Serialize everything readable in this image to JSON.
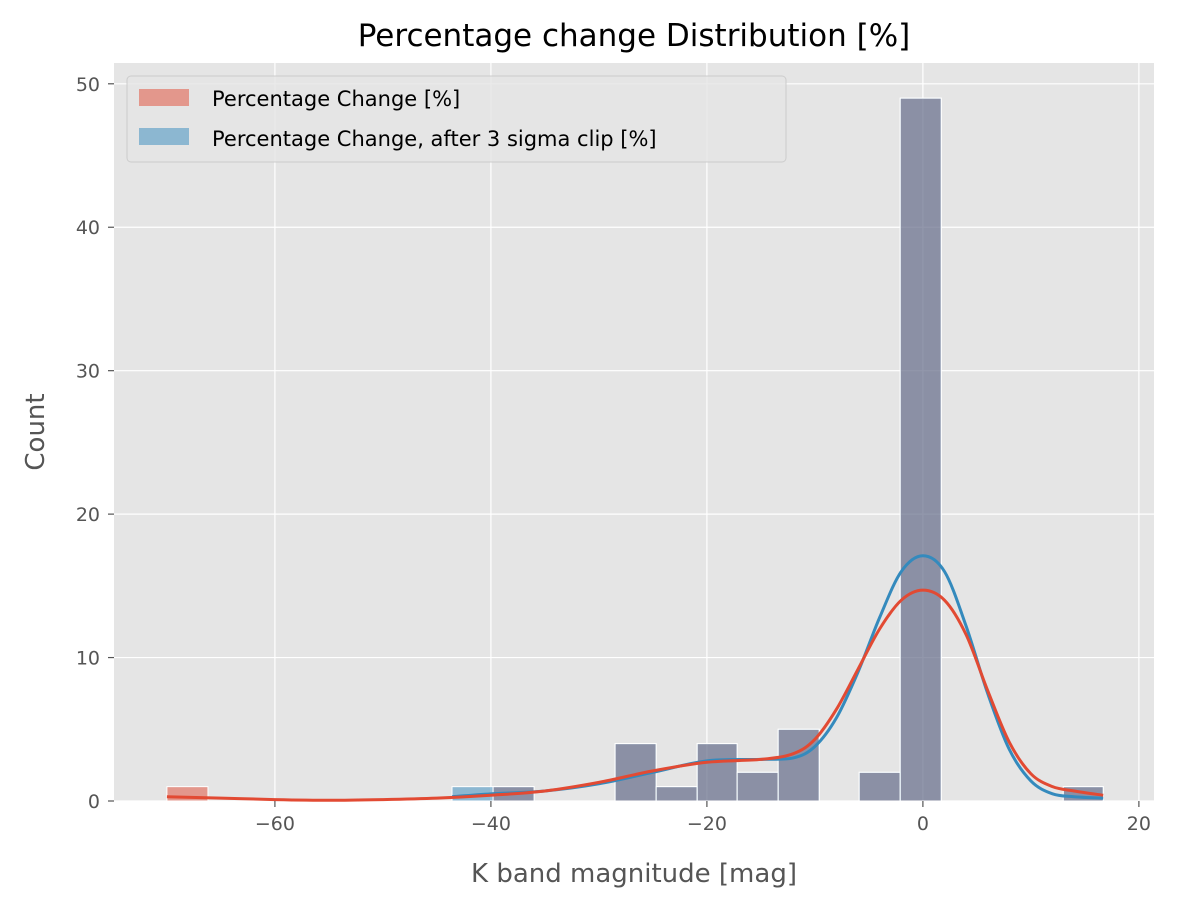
{
  "chart_data": {
    "type": "bar",
    "title": "Percentage change Distribution [%]",
    "xlabel": "K band magnitude [mag]",
    "ylabel": "Count",
    "xlim": [
      -74.9,
      21.4
    ],
    "ylim": [
      0,
      51.45
    ],
    "xticks": [
      -60,
      -40,
      -20,
      0,
      20
    ],
    "xtick_labels": [
      "−60",
      "−40",
      "−20",
      "0",
      "20"
    ],
    "yticks": [
      0,
      10,
      20,
      30,
      40,
      50
    ],
    "ytick_labels": [
      "0",
      "10",
      "20",
      "30",
      "40",
      "50"
    ],
    "grid": true,
    "legend_position": "top-left",
    "series": [
      {
        "name": "Percentage Change [%]",
        "color": "#E24A33",
        "bins": [
          {
            "x0": -70.0,
            "x1": -66.2,
            "count": 1
          },
          {
            "x0": -66.2,
            "x1": -62.4,
            "count": 0
          },
          {
            "x0": -62.4,
            "x1": -58.6,
            "count": 0
          },
          {
            "x0": -58.6,
            "x1": -54.9,
            "count": 0
          },
          {
            "x0": -54.9,
            "x1": -51.1,
            "count": 0
          },
          {
            "x0": -51.1,
            "x1": -47.3,
            "count": 0
          },
          {
            "x0": -47.3,
            "x1": -43.6,
            "count": 0
          },
          {
            "x0": -43.6,
            "x1": -39.8,
            "count": 0
          },
          {
            "x0": -39.8,
            "x1": -36.0,
            "count": 1
          },
          {
            "x0": -36.0,
            "x1": -32.3,
            "count": 0
          },
          {
            "x0": -32.3,
            "x1": -28.5,
            "count": 0
          },
          {
            "x0": -28.5,
            "x1": -24.7,
            "count": 4
          },
          {
            "x0": -24.7,
            "x1": -20.9,
            "count": 1
          },
          {
            "x0": -20.9,
            "x1": -17.2,
            "count": 4
          },
          {
            "x0": -17.2,
            "x1": -13.4,
            "count": 2
          },
          {
            "x0": -13.4,
            "x1": -9.6,
            "count": 5
          },
          {
            "x0": -9.6,
            "x1": -5.9,
            "count": 0
          },
          {
            "x0": -5.9,
            "x1": -2.1,
            "count": 2
          },
          {
            "x0": -2.1,
            "x1": 1.7,
            "count": 49
          },
          {
            "x0": 1.7,
            "x1": 5.4,
            "count": 0
          },
          {
            "x0": 5.4,
            "x1": 9.2,
            "count": 0
          },
          {
            "x0": 9.2,
            "x1": 13.0,
            "count": 0
          },
          {
            "x0": 13.0,
            "x1": 16.7,
            "count": 1
          }
        ],
        "kde": {
          "x": [
            -70,
            -65,
            -60,
            -55,
            -50,
            -45,
            -40,
            -35,
            -30,
            -25,
            -20,
            -15,
            -12,
            -10,
            -8,
            -6,
            -4,
            -2,
            0,
            2,
            4,
            6,
            8,
            10,
            12,
            14,
            16.7
          ],
          "y": [
            0.3,
            0.2,
            0.1,
            0.05,
            0.1,
            0.2,
            0.4,
            0.7,
            1.3,
            2.1,
            2.7,
            2.9,
            3.3,
            4.3,
            6.4,
            9.2,
            12.0,
            14.0,
            14.7,
            14.0,
            11.6,
            7.7,
            4.1,
            1.9,
            1.0,
            0.7,
            0.4
          ]
        }
      },
      {
        "name": "Percentage Change, after 3 sigma clip [%]",
        "color": "#348ABD",
        "bins": [
          {
            "x0": -43.6,
            "x1": -39.8,
            "count": 1
          },
          {
            "x0": -39.8,
            "x1": -36.0,
            "count": 1
          },
          {
            "x0": -28.5,
            "x1": -24.7,
            "count": 4
          },
          {
            "x0": -24.7,
            "x1": -20.9,
            "count": 1
          },
          {
            "x0": -20.9,
            "x1": -17.2,
            "count": 4
          },
          {
            "x0": -17.2,
            "x1": -13.4,
            "count": 2
          },
          {
            "x0": -13.4,
            "x1": -9.6,
            "count": 5
          },
          {
            "x0": -5.9,
            "x1": -2.1,
            "count": 2
          },
          {
            "x0": -2.1,
            "x1": 1.7,
            "count": 49
          },
          {
            "x0": 13.0,
            "x1": 16.7,
            "count": 1
          }
        ],
        "kde": {
          "x": [
            -43.6,
            -40,
            -35,
            -30,
            -25,
            -20,
            -15,
            -12,
            -10,
            -8,
            -6,
            -4,
            -2,
            0,
            2,
            4,
            6,
            8,
            10,
            12,
            14,
            16.7
          ],
          "y": [
            0.3,
            0.5,
            0.7,
            1.2,
            2.0,
            2.8,
            2.9,
            3.0,
            3.8,
            5.8,
            9.0,
            12.8,
            16.0,
            17.1,
            16.0,
            12.2,
            7.5,
            3.6,
            1.4,
            0.5,
            0.3,
            0.2
          ]
        }
      }
    ]
  }
}
